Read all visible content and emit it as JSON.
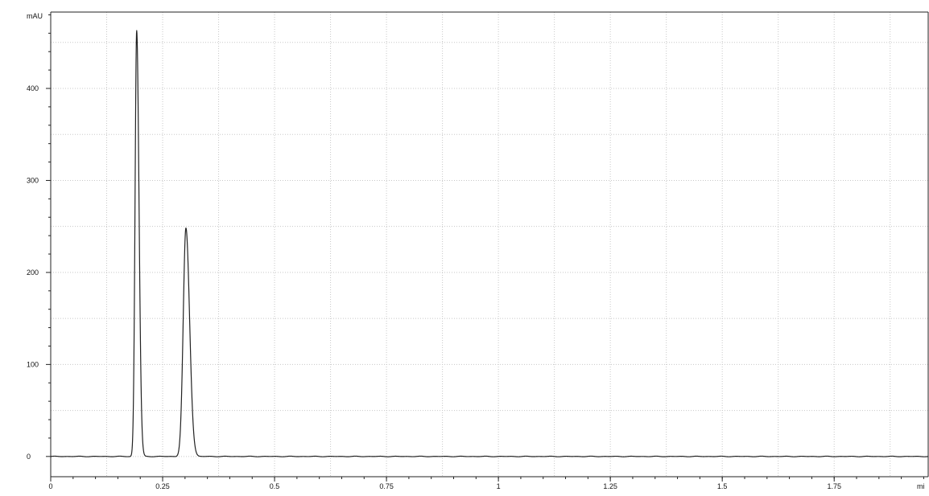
{
  "chart_data": {
    "type": "line",
    "title": "",
    "xlabel": "",
    "ylabel": "",
    "y_unit": "mAU",
    "x_unit": "mi",
    "xlim": [
      0,
      1.96
    ],
    "ylim": [
      -22,
      483
    ],
    "x_ticks": [
      0,
      0.25,
      0.5,
      0.75,
      1,
      1.25,
      1.5,
      1.75
    ],
    "x_tick_labels": [
      "0",
      "0.25",
      "0.5",
      "0.75",
      "1",
      "1.25",
      "1.5",
      "1.75"
    ],
    "y_ticks": [
      0,
      100,
      200,
      300,
      400
    ],
    "y_tick_labels": [
      "0",
      "100",
      "200",
      "300",
      "400"
    ],
    "grid": true,
    "legend": "none",
    "colors": {
      "trace": "#222222",
      "axis": "#222222",
      "grid": "#c8c8c8",
      "background": "#ffffff"
    },
    "series": [
      {
        "peaks": [
          {
            "rt": 0.192,
            "height": 463,
            "sigma_left": 0.0036,
            "sigma_right": 0.0052
          },
          {
            "rt": 0.302,
            "height": 248,
            "sigma_left": 0.006,
            "sigma_right": 0.0082
          }
        ],
        "baseline": 0.0,
        "noise_amplitude": 0.35
      }
    ]
  }
}
